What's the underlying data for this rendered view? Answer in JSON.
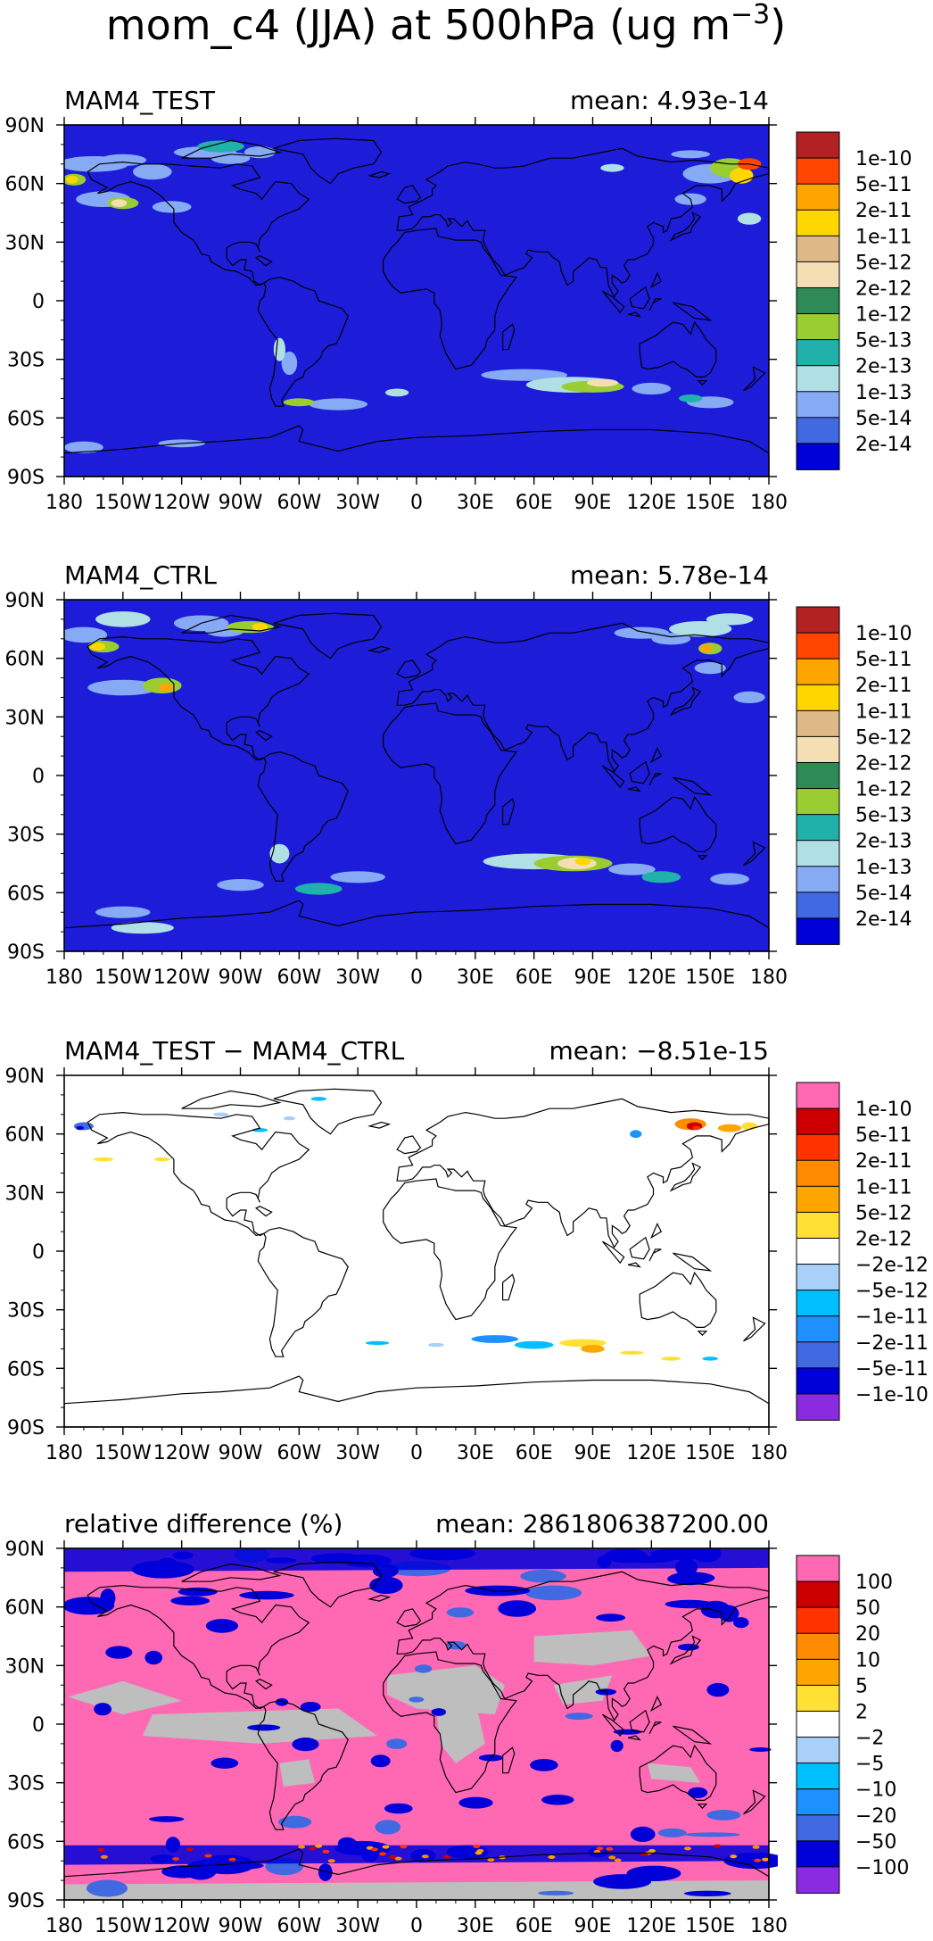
{
  "figure": {
    "title": "mom_c4 (JJA) at 500hPa (ug m",
    "title_superscript": "−3",
    "title_close": ")"
  },
  "palettes": {
    "abs": [
      "#0000d9",
      "#4169e1",
      "#87aaf5",
      "#b0e0e6",
      "#20b2aa",
      "#9acd32",
      "#2e8b57",
      "#f5deb3",
      "#deb887",
      "#ffd700",
      "#ffa500",
      "#ff4500",
      "#b22222"
    ],
    "diff": [
      "#8a2be2",
      "#0000d9",
      "#4169e1",
      "#1e90ff",
      "#00bfff",
      "#a8d0f8",
      "#ffffff",
      "#ffe033",
      "#ffa500",
      "#ff8c00",
      "#ff3300",
      "#cc0000",
      "#ff69b4"
    ],
    "ocean": "#1c1cd9",
    "coast": "#000000",
    "gray": "#bebebe"
  },
  "chart_data": [
    {
      "type": "heatmap",
      "panel": "test",
      "left_title": "MAM4_TEST",
      "mean_text": "mean: 4.93e-14",
      "mean": 4.93e-14,
      "x_ticks": [
        "180",
        "150W",
        "120W",
        "90W",
        "60W",
        "30W",
        "0",
        "30E",
        "60E",
        "90E",
        "120E",
        "150E",
        "180"
      ],
      "y_ticks": [
        "90N",
        "60N",
        "30N",
        "0",
        "30S",
        "60S",
        "90S"
      ],
      "xlim": [
        -180,
        180
      ],
      "ylim": [
        -90,
        90
      ],
      "palette": "abs",
      "colorbar": {
        "labels": [
          "2e-14",
          "5e-14",
          "1e-13",
          "2e-13",
          "5e-13",
          "1e-12",
          "2e-12",
          "5e-12",
          "1e-11",
          "2e-11",
          "5e-11",
          "1e-10"
        ]
      }
    },
    {
      "type": "heatmap",
      "panel": "ctrl",
      "left_title": "MAM4_CTRL",
      "mean_text": "mean: 5.78e-14",
      "mean": 5.78e-14,
      "x_ticks": [
        "180",
        "150W",
        "120W",
        "90W",
        "60W",
        "30W",
        "0",
        "30E",
        "60E",
        "90E",
        "120E",
        "150E",
        "180"
      ],
      "y_ticks": [
        "90N",
        "60N",
        "30N",
        "0",
        "30S",
        "60S",
        "90S"
      ],
      "xlim": [
        -180,
        180
      ],
      "ylim": [
        -90,
        90
      ],
      "palette": "abs",
      "colorbar": {
        "labels": [
          "2e-14",
          "5e-14",
          "1e-13",
          "2e-13",
          "5e-13",
          "1e-12",
          "2e-12",
          "5e-12",
          "1e-11",
          "2e-11",
          "5e-11",
          "1e-10"
        ]
      }
    },
    {
      "type": "heatmap",
      "panel": "diff",
      "left_title": "MAM4_TEST − MAM4_CTRL",
      "mean_text": "mean: −8.51e-15",
      "mean": -8.51e-15,
      "x_ticks": [
        "180",
        "150W",
        "120W",
        "90W",
        "60W",
        "30W",
        "0",
        "30E",
        "60E",
        "90E",
        "120E",
        "150E",
        "180"
      ],
      "y_ticks": [
        "90N",
        "60N",
        "30N",
        "0",
        "30S",
        "60S",
        "90S"
      ],
      "xlim": [
        -180,
        180
      ],
      "ylim": [
        -90,
        90
      ],
      "palette": "diff",
      "colorbar": {
        "labels": [
          "−1e-10",
          "−5e-11",
          "−2e-11",
          "−1e-11",
          "−5e-12",
          "−2e-12",
          "2e-12",
          "5e-12",
          "1e-11",
          "2e-11",
          "5e-11",
          "1e-10"
        ]
      }
    },
    {
      "type": "heatmap",
      "panel": "rel",
      "left_title": "relative difference (%)",
      "mean_text": "mean: 2861806387200.00",
      "mean": 2861806387200.0,
      "x_ticks": [
        "180",
        "150W",
        "120W",
        "90W",
        "60W",
        "30W",
        "0",
        "30E",
        "60E",
        "90E",
        "120E",
        "150E",
        "180"
      ],
      "y_ticks": [
        "90N",
        "60N",
        "30N",
        "0",
        "30S",
        "60S",
        "90S"
      ],
      "xlim": [
        -180,
        180
      ],
      "ylim": [
        -90,
        90
      ],
      "palette": "diff",
      "colorbar": {
        "labels": [
          "−100",
          "−50",
          "−20",
          "−10",
          "−5",
          "−2",
          "2",
          "5",
          "10",
          "20",
          "50",
          "100"
        ]
      }
    }
  ]
}
